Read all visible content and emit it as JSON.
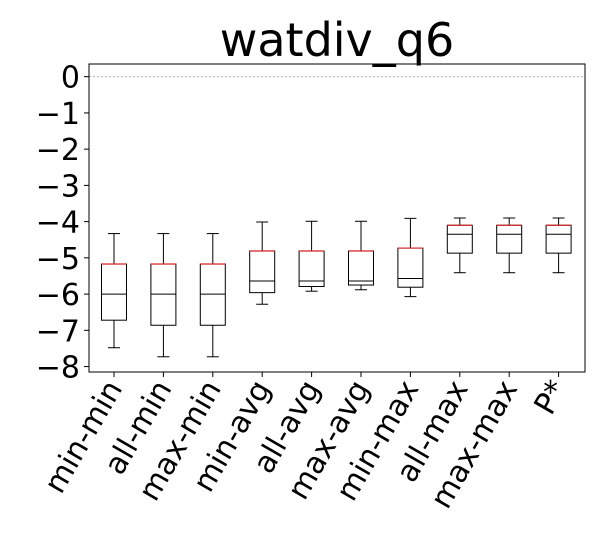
{
  "chart_data": {
    "type": "box",
    "title": "watdiv_q6",
    "xlabel": "",
    "ylabel": "",
    "ylim": [
      -8.15,
      0.35
    ],
    "yticks": [
      0,
      -1,
      -2,
      -3,
      -4,
      -5,
      -6,
      -7,
      -8
    ],
    "ytick_labels": [
      "0",
      "−1",
      "−2",
      "−3",
      "−4",
      "−5",
      "−6",
      "−7",
      "−8"
    ],
    "reference_line": 0,
    "categories": [
      "min-min",
      "all-min",
      "max-min",
      "min-avg",
      "all-avg",
      "max-avg",
      "min-max",
      "all-max",
      "max-max",
      "P*"
    ],
    "boxes": [
      {
        "name": "min-min",
        "whislo": -7.48,
        "q1": -6.72,
        "med": -6.0,
        "q3": -5.17,
        "whishi": -4.33,
        "mean": -5.17
      },
      {
        "name": "all-min",
        "whislo": -7.73,
        "q1": -6.86,
        "med": -6.0,
        "q3": -5.17,
        "whishi": -4.33,
        "mean": -5.17
      },
      {
        "name": "max-min",
        "whislo": -7.73,
        "q1": -6.86,
        "med": -6.0,
        "q3": -5.17,
        "whishi": -4.33,
        "mean": -5.17
      },
      {
        "name": "min-avg",
        "whislo": -6.28,
        "q1": -5.96,
        "med": -5.64,
        "q3": -4.81,
        "whishi": -4.01,
        "mean": -4.81
      },
      {
        "name": "all-avg",
        "whislo": -5.92,
        "q1": -5.79,
        "med": -5.64,
        "q3": -4.81,
        "whishi": -3.99,
        "mean": -4.81
      },
      {
        "name": "max-avg",
        "whislo": -5.88,
        "q1": -5.75,
        "med": -5.64,
        "q3": -4.81,
        "whishi": -3.99,
        "mean": -4.81
      },
      {
        "name": "min-max",
        "whislo": -6.07,
        "q1": -5.81,
        "med": -5.57,
        "q3": -4.73,
        "whishi": -3.91,
        "mean": -4.73
      },
      {
        "name": "all-max",
        "whislo": -5.41,
        "q1": -4.87,
        "med": -4.35,
        "q3": -4.1,
        "whishi": -3.9,
        "mean": -4.1
      },
      {
        "name": "max-max",
        "whislo": -5.41,
        "q1": -4.87,
        "med": -4.35,
        "q3": -4.1,
        "whishi": -3.9,
        "mean": -4.1
      },
      {
        "name": "P*",
        "whislo": -5.41,
        "q1": -4.87,
        "med": -4.35,
        "q3": -4.1,
        "whishi": -3.9,
        "mean": -4.1
      }
    ],
    "colors": {
      "box": "#000000",
      "mean_line": "#d62728",
      "reference_line": "#aaaaaa"
    }
  }
}
